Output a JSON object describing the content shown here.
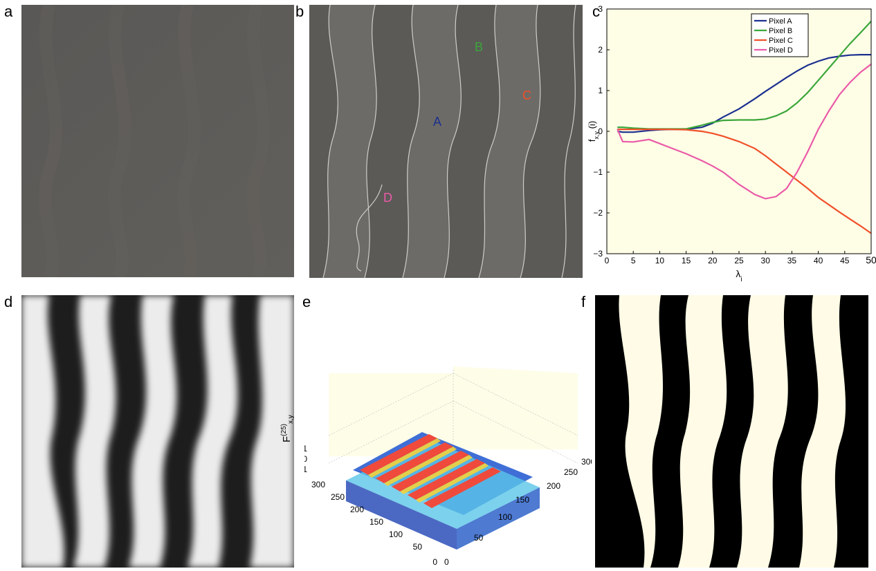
{
  "panel_labels": {
    "a": "a",
    "b": "b",
    "c": "c",
    "d": "d",
    "e": "e",
    "f": "f"
  },
  "colors": {
    "blue": "#1a2f8f",
    "green": "#3aa63a",
    "red": "#f0502a",
    "magenta": "#ea5aa8",
    "plot_bg": "#fefde6",
    "gray_panel": "#5d5b58"
  },
  "panel_b": {
    "markers": [
      {
        "label": "A",
        "color": "#1a2f8f"
      },
      {
        "label": "B",
        "color": "#3aa63a"
      },
      {
        "label": "C",
        "color": "#f0502a"
      },
      {
        "label": "D",
        "color": "#ea5aa8"
      }
    ]
  },
  "panel_e": {
    "z_ticks": [
      "1",
      "0",
      "−1"
    ],
    "x_ticks": [
      "300",
      "250",
      "200",
      "150",
      "100",
      "50",
      "0"
    ],
    "y_ticks": [
      "300",
      "250",
      "200",
      "150",
      "100",
      "50",
      "0"
    ],
    "zlabel_main": "F",
    "zlabel_sup": "(25)",
    "zlabel_sub": "x,y"
  },
  "chart_data": {
    "type": "line",
    "title": "",
    "xlabel_main": "λ",
    "xlabel_sub": "i",
    "ylabel_main": "f",
    "ylabel_sub": "x,y",
    "ylabel_tail": " (i)",
    "xlim": [
      0,
      50
    ],
    "ylim": [
      -3,
      3
    ],
    "xticks": [
      "0",
      "5",
      "10",
      "15",
      "20",
      "25",
      "30",
      "35",
      "40",
      "45",
      "50"
    ],
    "yticks": [
      "−3",
      "−2",
      "−1",
      "0",
      "1",
      "2",
      "3"
    ],
    "legend_position": "top-right",
    "grid": false,
    "x": [
      2,
      3,
      5,
      8,
      10,
      12,
      15,
      18,
      20,
      22,
      25,
      28,
      30,
      32,
      34,
      36,
      38,
      40,
      42,
      44,
      46,
      48,
      50
    ],
    "series": [
      {
        "name": "Pixel A",
        "color": "#1a2f8f",
        "values": [
          0.0,
          -0.02,
          -0.02,
          0.02,
          0.04,
          0.05,
          0.05,
          0.1,
          0.2,
          0.35,
          0.55,
          0.8,
          0.98,
          1.15,
          1.32,
          1.48,
          1.62,
          1.72,
          1.8,
          1.84,
          1.87,
          1.88,
          1.88
        ]
      },
      {
        "name": "Pixel B",
        "color": "#3aa63a",
        "values": [
          0.1,
          0.1,
          0.08,
          0.06,
          0.06,
          0.06,
          0.06,
          0.15,
          0.22,
          0.27,
          0.28,
          0.28,
          0.3,
          0.38,
          0.5,
          0.7,
          0.95,
          1.25,
          1.55,
          1.85,
          2.15,
          2.42,
          2.7
        ]
      },
      {
        "name": "Pixel C",
        "color": "#f0502a",
        "values": [
          0.05,
          0.05,
          0.05,
          0.05,
          0.05,
          0.05,
          0.04,
          0.0,
          -0.05,
          -0.12,
          -0.25,
          -0.42,
          -0.6,
          -0.8,
          -1.0,
          -1.2,
          -1.4,
          -1.62,
          -1.8,
          -1.98,
          -2.15,
          -2.32,
          -2.5
        ]
      },
      {
        "name": "Pixel D",
        "color": "#ea5aa8",
        "values": [
          0.05,
          -0.25,
          -0.26,
          -0.2,
          -0.3,
          -0.4,
          -0.55,
          -0.72,
          -0.85,
          -1.0,
          -1.3,
          -1.55,
          -1.65,
          -1.6,
          -1.4,
          -1.0,
          -0.5,
          0.05,
          0.5,
          0.9,
          1.2,
          1.45,
          1.65
        ]
      }
    ]
  }
}
